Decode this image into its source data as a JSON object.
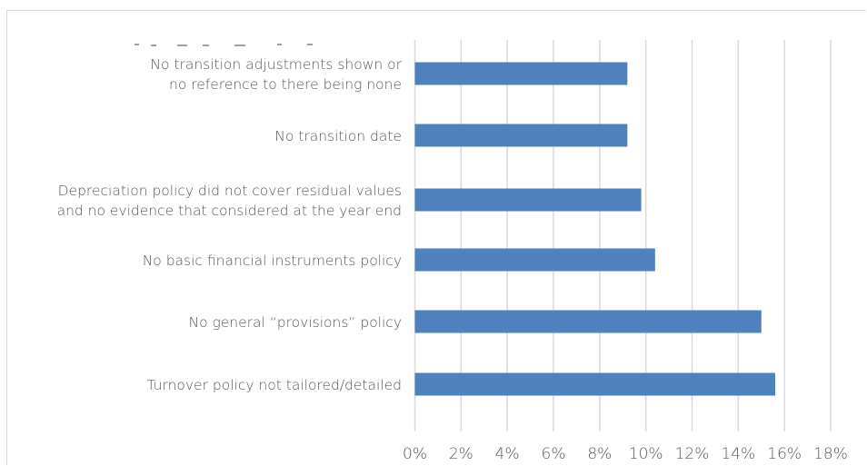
{
  "chart_data": {
    "type": "bar",
    "orientation": "horizontal",
    "categories": [
      [
        "No transition adjustments shown or",
        "no reference to there being none"
      ],
      [
        "No transition date"
      ],
      [
        "Depreciation policy did not cover residual values",
        "and no evidence that considered at the year end"
      ],
      [
        "No basic financial instruments policy"
      ],
      [
        "No general “provisions” policy"
      ],
      [
        "Turnover policy not tailored/detailed"
      ]
    ],
    "values": [
      9.2,
      9.2,
      9.8,
      10.4,
      15.0,
      15.6
    ],
    "xlim": [
      0,
      18
    ],
    "ticks": [
      "0%",
      "2%",
      "4%",
      "6%",
      "8%",
      "10%",
      "12%",
      "14%",
      "16%",
      "18%"
    ],
    "grid": true,
    "legend": "none",
    "bar_color": "#4f81bd",
    "gridline_color": "#d9d9d9",
    "text_color": "#595959"
  }
}
